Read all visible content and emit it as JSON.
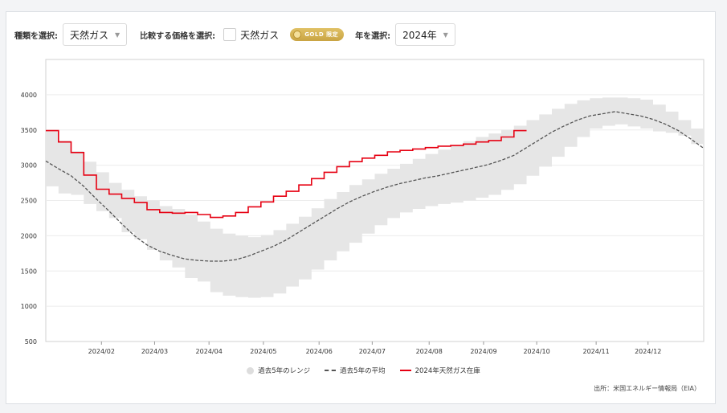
{
  "controls": {
    "type_label": "種類を選択:",
    "type_value": "天然ガス",
    "compare_label": "比較する価格を選択:",
    "compare_value": "天然ガス",
    "gold_badge": "GOLD 限定",
    "year_label": "年を選択:",
    "year_value": "2024年"
  },
  "legend": {
    "range": "過去5年のレンジ",
    "avg": "過去5年の平均",
    "current": "2024年天然ガス在庫"
  },
  "source": "出所：米国エネルギー情報局（EIA）",
  "colors": {
    "current": "#e60012",
    "avg": "#555555",
    "range": "#e6e6e6"
  },
  "chart_data": {
    "type": "line",
    "ylim": [
      500,
      4500
    ],
    "yticks": [
      500,
      1000,
      1500,
      2000,
      2500,
      3000,
      3500,
      4000
    ],
    "xticks": [
      {
        "label": "2024/02",
        "week": 4.4
      },
      {
        "label": "2024/03",
        "week": 8.6
      },
      {
        "label": "2024/04",
        "week": 12.9
      },
      {
        "label": "2024/05",
        "week": 17.2
      },
      {
        "label": "2024/06",
        "week": 21.6
      },
      {
        "label": "2024/07",
        "week": 25.8
      },
      {
        "label": "2024/08",
        "week": 30.3
      },
      {
        "label": "2024/09",
        "week": 34.6
      },
      {
        "label": "2024/10",
        "week": 38.8
      },
      {
        "label": "2024/11",
        "week": 43.5
      },
      {
        "label": "2024/12",
        "week": 47.6
      }
    ],
    "x_range": [
      0,
      52
    ],
    "series": [
      {
        "name": "過去5年のレンジ",
        "kind": "band",
        "x": [
          0,
          1,
          2,
          3,
          4,
          5,
          6,
          7,
          8,
          9,
          10,
          11,
          12,
          13,
          14,
          15,
          16,
          17,
          18,
          19,
          20,
          21,
          22,
          23,
          24,
          25,
          26,
          27,
          28,
          29,
          30,
          31,
          32,
          33,
          34,
          35,
          36,
          37,
          38,
          39,
          40,
          41,
          42,
          43,
          44,
          45,
          46,
          47,
          48,
          49,
          50,
          51,
          52
        ],
        "low": [
          2700,
          2600,
          2580,
          2450,
          2350,
          2250,
          2050,
          1950,
          1800,
          1650,
          1550,
          1400,
          1350,
          1200,
          1150,
          1130,
          1120,
          1130,
          1180,
          1280,
          1380,
          1520,
          1650,
          1780,
          1900,
          2030,
          2150,
          2250,
          2330,
          2380,
          2420,
          2450,
          2470,
          2500,
          2540,
          2580,
          2650,
          2730,
          2850,
          2980,
          3120,
          3260,
          3400,
          3520,
          3560,
          3580,
          3550,
          3520,
          3480,
          3460,
          3420,
          3300,
          2900
        ],
        "high": [
          3480,
          3350,
          3200,
          3050,
          2900,
          2750,
          2650,
          2560,
          2500,
          2420,
          2380,
          2300,
          2200,
          2100,
          2030,
          2000,
          1980,
          2010,
          2080,
          2170,
          2270,
          2390,
          2520,
          2620,
          2720,
          2800,
          2880,
          2950,
          3020,
          3090,
          3160,
          3220,
          3280,
          3340,
          3400,
          3450,
          3500,
          3560,
          3640,
          3720,
          3800,
          3870,
          3920,
          3950,
          3960,
          3960,
          3950,
          3930,
          3860,
          3760,
          3640,
          3520,
          3480
        ]
      },
      {
        "name": "過去5年の平均",
        "kind": "avg",
        "x": [
          0,
          1,
          2,
          3,
          4,
          5,
          6,
          7,
          8,
          9,
          10,
          11,
          12,
          13,
          14,
          15,
          16,
          17,
          18,
          19,
          20,
          21,
          22,
          23,
          24,
          25,
          26,
          27,
          28,
          29,
          30,
          31,
          32,
          33,
          34,
          35,
          36,
          37,
          38,
          39,
          40,
          41,
          42,
          43,
          44,
          45,
          46,
          47,
          48,
          49,
          50,
          51,
          52
        ],
        "y": [
          3060,
          2950,
          2850,
          2700,
          2520,
          2350,
          2170,
          2000,
          1870,
          1780,
          1720,
          1670,
          1650,
          1640,
          1640,
          1660,
          1710,
          1780,
          1850,
          1940,
          2050,
          2160,
          2270,
          2380,
          2480,
          2560,
          2630,
          2690,
          2740,
          2780,
          2820,
          2850,
          2890,
          2930,
          2970,
          3010,
          3070,
          3140,
          3250,
          3360,
          3470,
          3560,
          3640,
          3700,
          3730,
          3760,
          3730,
          3700,
          3650,
          3580,
          3490,
          3370,
          3240
        ]
      },
      {
        "name": "2024年天然ガス在庫",
        "kind": "current",
        "x": [
          0,
          1,
          2,
          3,
          4,
          5,
          6,
          7,
          8,
          9,
          10,
          11,
          12,
          13,
          14,
          15,
          16,
          17,
          18,
          19,
          20,
          21,
          22,
          23,
          24,
          25,
          26,
          27,
          28,
          29,
          30,
          31,
          32,
          33,
          34,
          35,
          36,
          37
        ],
        "y": [
          3490,
          3330,
          3180,
          2860,
          2660,
          2590,
          2530,
          2470,
          2370,
          2330,
          2320,
          2330,
          2300,
          2260,
          2280,
          2330,
          2410,
          2480,
          2560,
          2630,
          2720,
          2810,
          2900,
          2980,
          3050,
          3100,
          3140,
          3190,
          3210,
          3230,
          3250,
          3270,
          3280,
          3300,
          3330,
          3350,
          3400,
          3490
        ]
      }
    ]
  }
}
